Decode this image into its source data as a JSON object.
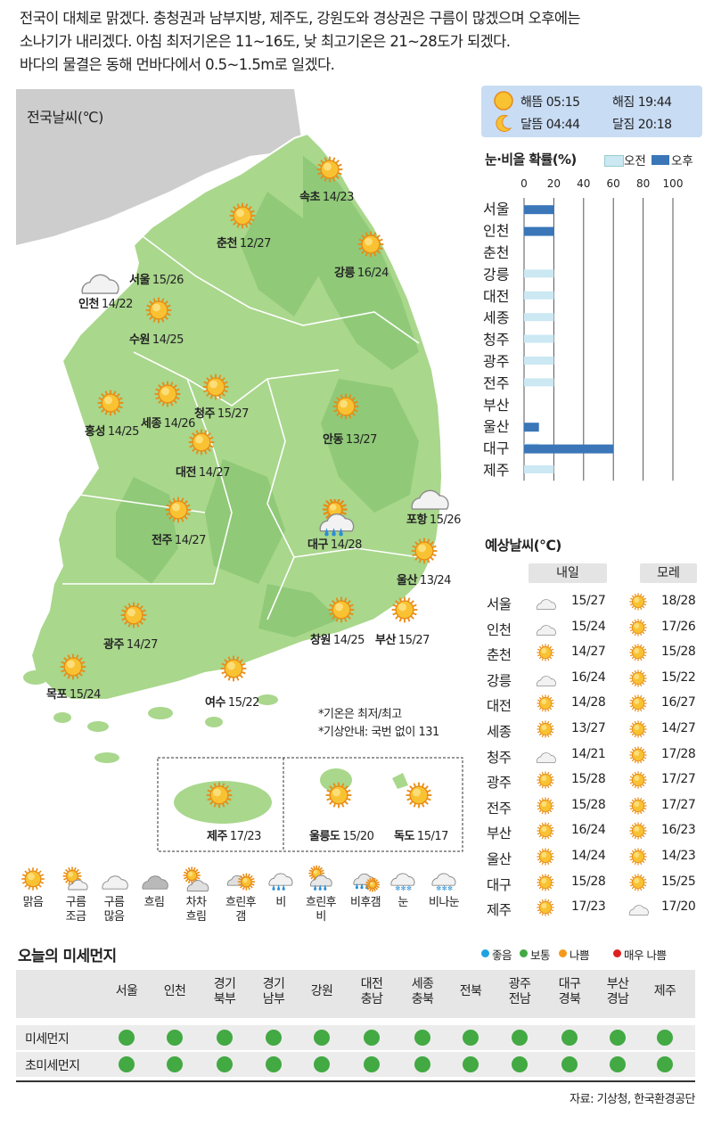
{
  "summary": [
    "전국이 대체로 맑겠다. 충청권과 남부지방, 제주도, 강원도와 경상권은 구름이 많겠으며 오후에는",
    "소나기가 내리겠다. 아침 최저기온은 11~16도, 낮 최고기온은 21~28도가 되겠다.",
    "바다의 물결은 동해 먼바다에서 0.5~1.5m로 일겠다."
  ],
  "map": {
    "title": "전국날씨(℃)",
    "cities": [
      {
        "name": "속초",
        "temp": "14/23",
        "icon": "sun-icon"
      },
      {
        "name": "춘천",
        "temp": "12/27",
        "icon": "sun-icon"
      },
      {
        "name": "강릉",
        "temp": "16/24",
        "icon": "sun-icon"
      },
      {
        "name": "서울",
        "temp": "15/26",
        "icon": "cloud-icon"
      },
      {
        "name": "인천",
        "temp": "14/22",
        "icon": "none"
      },
      {
        "name": "수원",
        "temp": "14/25",
        "icon": "sun-icon"
      },
      {
        "name": "청주",
        "temp": "15/27",
        "icon": "sun-icon"
      },
      {
        "name": "세종",
        "temp": "14/26",
        "icon": "sun-icon"
      },
      {
        "name": "홍성",
        "temp": "14/25",
        "icon": "sun-icon"
      },
      {
        "name": "안동",
        "temp": "13/27",
        "icon": "sun-icon"
      },
      {
        "name": "대전",
        "temp": "14/27",
        "icon": "sun-icon"
      },
      {
        "name": "포항",
        "temp": "15/26",
        "icon": "cloud-icon"
      },
      {
        "name": "전주",
        "temp": "14/27",
        "icon": "sun-icon"
      },
      {
        "name": "대구",
        "temp": "14/28",
        "icon": "shower-icon"
      },
      {
        "name": "울산",
        "temp": "13/24",
        "icon": "sun-icon"
      },
      {
        "name": "광주",
        "temp": "14/27",
        "icon": "sun-icon"
      },
      {
        "name": "창원",
        "temp": "14/25",
        "icon": "sun-icon"
      },
      {
        "name": "부산",
        "temp": "15/27",
        "icon": "sun-icon"
      },
      {
        "name": "목포",
        "temp": "15/24",
        "icon": "sun-icon"
      },
      {
        "name": "여수",
        "temp": "15/22",
        "icon": "sun-icon"
      }
    ],
    "insets": [
      {
        "name": "제주",
        "temp": "17/23"
      },
      {
        "name": "울릉도",
        "temp": "15/20"
      },
      {
        "name": "독도",
        "temp": "15/17"
      }
    ],
    "notes": [
      "*기온은 최저/최고",
      "*기상안내: 국번 없이 131"
    ]
  },
  "sun_moon": {
    "sunrise_label": "해뜸",
    "sunrise": "05:15",
    "sunset_label": "해짐",
    "sunset": "19:44",
    "moonrise_label": "달뜸",
    "moonrise": "04:44",
    "moonset_label": "달짐",
    "moonset": "20:18"
  },
  "chart_data": {
    "type": "bar",
    "orientation": "horizontal",
    "title": "눈·비올 확률(%)",
    "categories": [
      "서울",
      "인천",
      "춘천",
      "강릉",
      "대전",
      "세종",
      "청주",
      "광주",
      "전주",
      "부산",
      "울산",
      "대구",
      "제주"
    ],
    "series": [
      {
        "name": "오전",
        "color": "#cbe8f3",
        "values": [
          0,
          0,
          0,
          20,
          20,
          20,
          20,
          20,
          20,
          0,
          0,
          10,
          20
        ]
      },
      {
        "name": "오후",
        "color": "#3a76b8",
        "values": [
          20,
          20,
          0,
          0,
          0,
          0,
          0,
          0,
          0,
          0,
          10,
          60,
          0
        ]
      }
    ],
    "xticks": [
      0,
      20,
      40,
      60,
      80,
      100
    ],
    "xlim": [
      0,
      100
    ],
    "grid": true,
    "legend": "top-right"
  },
  "forecast": {
    "title": "예상날씨(℃)",
    "col1": "내일",
    "col2": "모레",
    "rows": [
      {
        "city": "서울",
        "t1": "15/27",
        "i1": "cloud-icon",
        "t2": "18/28",
        "i2": "sun-icon"
      },
      {
        "city": "인천",
        "t1": "15/24",
        "i1": "cloud-icon",
        "t2": "17/26",
        "i2": "sun-icon"
      },
      {
        "city": "춘천",
        "t1": "14/27",
        "i1": "sun-icon",
        "t2": "15/28",
        "i2": "sun-icon"
      },
      {
        "city": "강릉",
        "t1": "16/24",
        "i1": "cloud-icon",
        "t2": "15/22",
        "i2": "sun-icon"
      },
      {
        "city": "대전",
        "t1": "14/28",
        "i1": "sun-icon",
        "t2": "16/27",
        "i2": "sun-icon"
      },
      {
        "city": "세종",
        "t1": "13/27",
        "i1": "sun-icon",
        "t2": "14/27",
        "i2": "sun-icon"
      },
      {
        "city": "청주",
        "t1": "14/21",
        "i1": "cloud-icon",
        "t2": "17/28",
        "i2": "sun-icon"
      },
      {
        "city": "광주",
        "t1": "15/28",
        "i1": "sun-icon",
        "t2": "17/27",
        "i2": "sun-icon"
      },
      {
        "city": "전주",
        "t1": "15/28",
        "i1": "sun-icon",
        "t2": "17/27",
        "i2": "sun-icon"
      },
      {
        "city": "부산",
        "t1": "16/24",
        "i1": "sun-icon",
        "t2": "16/23",
        "i2": "sun-icon"
      },
      {
        "city": "울산",
        "t1": "14/24",
        "i1": "sun-icon",
        "t2": "14/23",
        "i2": "sun-icon"
      },
      {
        "city": "대구",
        "t1": "15/28",
        "i1": "sun-icon",
        "t2": "15/25",
        "i2": "sun-icon"
      },
      {
        "city": "제주",
        "t1": "17/23",
        "i1": "sun-icon",
        "t2": "17/20",
        "i2": "cloud-icon"
      }
    ]
  },
  "legend": [
    {
      "label": "맑음",
      "icon": "sun-icon"
    },
    {
      "label": "구름\n조금",
      "icon": "partly-cloudy-icon"
    },
    {
      "label": "구름\n많음",
      "icon": "cloud-icon"
    },
    {
      "label": "흐림",
      "icon": "overcast-icon"
    },
    {
      "label": "차차\n흐림",
      "icon": "gradually-cloudy-icon"
    },
    {
      "label": "흐린후\n갬",
      "icon": "clearing-icon"
    },
    {
      "label": "비",
      "icon": "rain-icon"
    },
    {
      "label": "흐린후\n비",
      "icon": "cloud-then-rain-icon"
    },
    {
      "label": "비후갬",
      "icon": "rain-then-clear-icon"
    },
    {
      "label": "눈",
      "icon": "snow-icon"
    },
    {
      "label": "비나눈",
      "icon": "sleet-icon"
    }
  ],
  "dust": {
    "title": "오늘의 미세먼지",
    "levels": [
      {
        "label": "좋음",
        "color": "#1fa3e0"
      },
      {
        "label": "보통",
        "color": "#43a943"
      },
      {
        "label": "나쁨",
        "color": "#f39a1e"
      },
      {
        "label": "매우 나쁨",
        "color": "#e02020"
      }
    ],
    "regions": [
      "서울",
      "인천",
      "경기\n북부",
      "경기\n남부",
      "강원",
      "대전\n충남",
      "세종\n충북",
      "전북",
      "광주\n전남",
      "대구\n경북",
      "부산\n경남",
      "제주"
    ],
    "rows": [
      {
        "label": "미세먼지",
        "values": [
          "보통",
          "보통",
          "보통",
          "보통",
          "보통",
          "보통",
          "보통",
          "보통",
          "보통",
          "보통",
          "보통",
          "보통"
        ]
      },
      {
        "label": "초미세먼지",
        "values": [
          "보통",
          "보통",
          "보통",
          "보통",
          "보통",
          "보통",
          "보통",
          "보통",
          "보통",
          "보통",
          "보통",
          "보통"
        ]
      }
    ]
  },
  "source": "자료: 기상청, 한국환경공단"
}
